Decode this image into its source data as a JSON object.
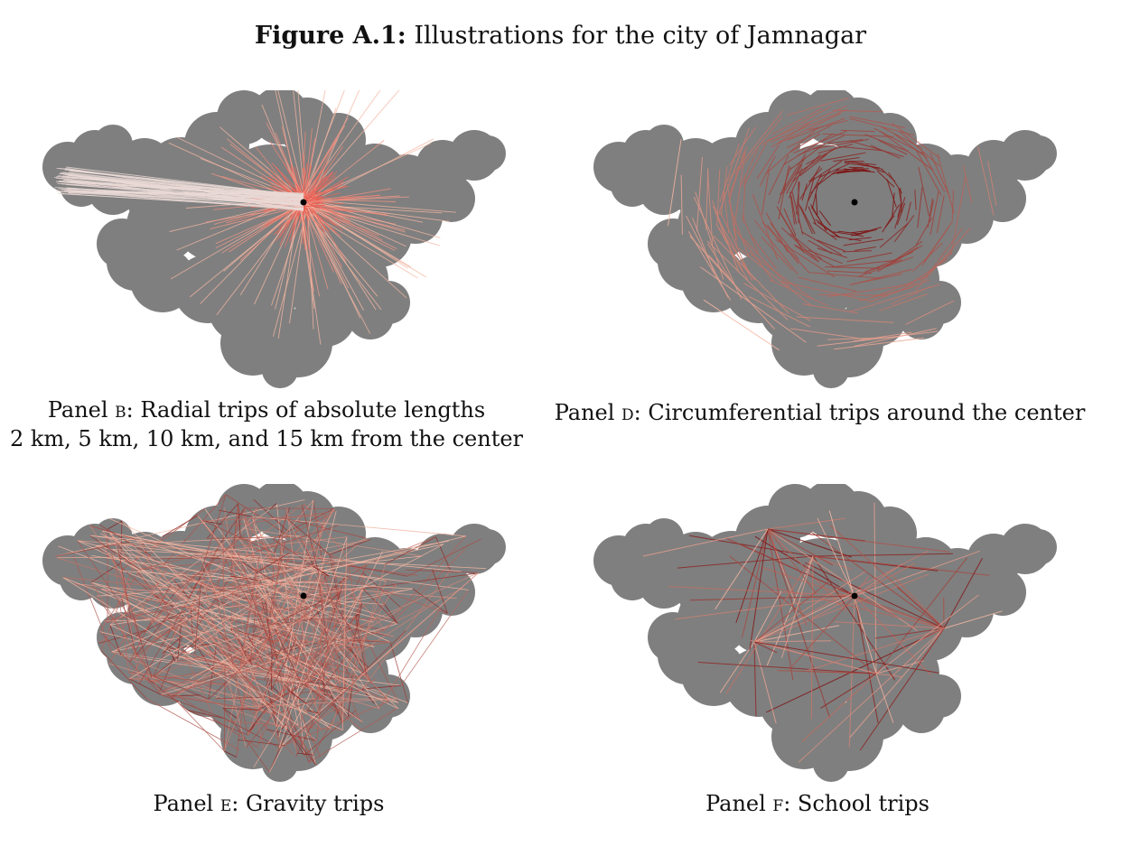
{
  "figure": {
    "label": "Figure A.1:",
    "title": "Illustrations for the city of Jamnagar"
  },
  "colors": {
    "city_fill": "#7f7f7f",
    "center_dot": "#000000",
    "trip_light": "#f4b7a3",
    "trip_mid": "#e8433a",
    "trip_dark": "#7a0d0d"
  },
  "panels": [
    {
      "id": "B",
      "caption_prefix": "Panel ",
      "letter": "b",
      "caption_line1": ": Radial trips of absolute lengths",
      "caption_line2": "2 km, 5 km, 10 km, and 15 km from the center",
      "trip_type": "radial"
    },
    {
      "id": "D",
      "caption_prefix": "Panel ",
      "letter": "d",
      "caption_line1": ": Circumferential trips around the center",
      "trip_type": "circumferential"
    },
    {
      "id": "E",
      "caption_prefix": "Panel ",
      "letter": "e",
      "caption_line1": ": Gravity trips",
      "trip_type": "gravity"
    },
    {
      "id": "F",
      "caption_prefix": "Panel ",
      "letter": "f",
      "caption_line1": ": School trips",
      "trip_type": "school"
    }
  ]
}
